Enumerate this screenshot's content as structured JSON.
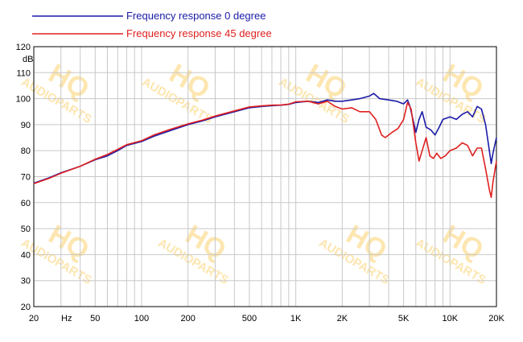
{
  "chart_data": {
    "type": "line",
    "title": "",
    "xlabel": "",
    "ylabel": "",
    "yunit": "dB",
    "xunit": "Hz",
    "x_scale": "log",
    "xlim": [
      20,
      20000
    ],
    "ylim": [
      20,
      120
    ],
    "grid": true,
    "legend_position": "top-left",
    "y_ticks": [
      "20",
      "30",
      "40",
      "50",
      "60",
      "70",
      "80",
      "90",
      "100",
      "110",
      "120"
    ],
    "x_ticks": [
      {
        "value": 20,
        "label": "20"
      },
      {
        "value": 50,
        "label": "50"
      },
      {
        "value": 100,
        "label": "100"
      },
      {
        "value": 200,
        "label": "200"
      },
      {
        "value": 500,
        "label": "500"
      },
      {
        "value": 1000,
        "label": "1K"
      },
      {
        "value": 2000,
        "label": "2K"
      },
      {
        "value": 5000,
        "label": "5K"
      },
      {
        "value": 10000,
        "label": "10K"
      },
      {
        "value": 20000,
        "label": "20K"
      }
    ],
    "series": [
      {
        "name": "Frequency response 0 degree",
        "color": "#1a1aa8",
        "points": [
          [
            20,
            67.5
          ],
          [
            25,
            69.5
          ],
          [
            30,
            71.5
          ],
          [
            40,
            74
          ],
          [
            50,
            76.5
          ],
          [
            60,
            78
          ],
          [
            70,
            80
          ],
          [
            80,
            82
          ],
          [
            100,
            83.5
          ],
          [
            120,
            85.5
          ],
          [
            150,
            87.5
          ],
          [
            200,
            90
          ],
          [
            250,
            91.5
          ],
          [
            300,
            93
          ],
          [
            400,
            95
          ],
          [
            500,
            96.5
          ],
          [
            600,
            97
          ],
          [
            700,
            97.3
          ],
          [
            800,
            97.5
          ],
          [
            900,
            97.8
          ],
          [
            1000,
            98.5
          ],
          [
            1200,
            99
          ],
          [
            1400,
            98.5
          ],
          [
            1600,
            99.5
          ],
          [
            1800,
            99
          ],
          [
            2000,
            99
          ],
          [
            2300,
            99.5
          ],
          [
            2600,
            100
          ],
          [
            3000,
            101
          ],
          [
            3200,
            102
          ],
          [
            3500,
            100
          ],
          [
            4000,
            99.5
          ],
          [
            4500,
            99
          ],
          [
            5000,
            98
          ],
          [
            5300,
            99.5
          ],
          [
            5500,
            97
          ],
          [
            5800,
            91
          ],
          [
            6000,
            87
          ],
          [
            6300,
            92
          ],
          [
            6600,
            95
          ],
          [
            7000,
            89
          ],
          [
            7500,
            88
          ],
          [
            8000,
            86
          ],
          [
            8500,
            89
          ],
          [
            9000,
            92
          ],
          [
            10000,
            93
          ],
          [
            11000,
            92
          ],
          [
            12000,
            94
          ],
          [
            13000,
            95
          ],
          [
            14000,
            93
          ],
          [
            15000,
            97
          ],
          [
            16000,
            96
          ],
          [
            17000,
            90
          ],
          [
            18000,
            80
          ],
          [
            18500,
            75
          ],
          [
            19000,
            79
          ],
          [
            20000,
            85
          ]
        ]
      },
      {
        "name": "Frequency response 45 degree",
        "color": "#e02020",
        "points": [
          [
            20,
            67.3
          ],
          [
            25,
            69.3
          ],
          [
            30,
            71.3
          ],
          [
            40,
            74
          ],
          [
            50,
            76.7
          ],
          [
            60,
            78.5
          ],
          [
            70,
            80.5
          ],
          [
            80,
            82.3
          ],
          [
            100,
            83.8
          ],
          [
            120,
            86
          ],
          [
            150,
            88
          ],
          [
            200,
            90.3
          ],
          [
            250,
            91.8
          ],
          [
            300,
            93.3
          ],
          [
            400,
            95.3
          ],
          [
            500,
            96.8
          ],
          [
            600,
            97.2
          ],
          [
            700,
            97.5
          ],
          [
            800,
            97.6
          ],
          [
            900,
            97.9
          ],
          [
            1000,
            98.8
          ],
          [
            1200,
            99
          ],
          [
            1400,
            98
          ],
          [
            1600,
            99
          ],
          [
            1800,
            97
          ],
          [
            2000,
            96
          ],
          [
            2300,
            96.5
          ],
          [
            2600,
            95
          ],
          [
            3000,
            95
          ],
          [
            3300,
            92
          ],
          [
            3600,
            86
          ],
          [
            3800,
            85
          ],
          [
            4200,
            87
          ],
          [
            4600,
            88.5
          ],
          [
            5000,
            92
          ],
          [
            5300,
            98.5
          ],
          [
            5600,
            96
          ],
          [
            6000,
            83
          ],
          [
            6300,
            76
          ],
          [
            6600,
            80
          ],
          [
            7000,
            85
          ],
          [
            7400,
            78
          ],
          [
            7800,
            77
          ],
          [
            8200,
            79
          ],
          [
            8700,
            77
          ],
          [
            9300,
            78
          ],
          [
            10000,
            80
          ],
          [
            11000,
            81
          ],
          [
            12000,
            83
          ],
          [
            13000,
            82
          ],
          [
            14000,
            78
          ],
          [
            15000,
            81
          ],
          [
            16000,
            81
          ],
          [
            17000,
            73
          ],
          [
            18000,
            65
          ],
          [
            18500,
            62
          ],
          [
            19000,
            68
          ],
          [
            20000,
            76
          ]
        ]
      }
    ]
  },
  "watermark": {
    "logo": "HQ",
    "text": "AUDIOPARTS",
    "color": "#fde6b0"
  }
}
